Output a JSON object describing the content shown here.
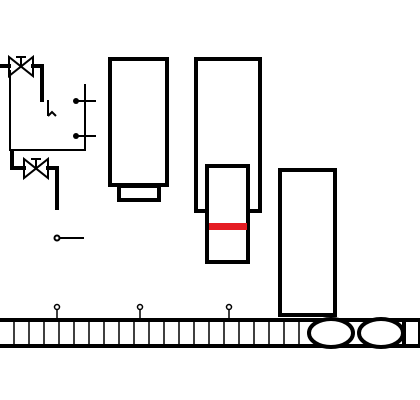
{
  "colors": {
    "background": "#ffffff",
    "stroke": "#000000",
    "highlight": "#e51c23"
  },
  "icons": {
    "valve_top": "butterfly-valve-icon",
    "valve_bottom": "butterfly-valve-icon",
    "contacts": "switch-contacts-icon",
    "sensor": "sensor-probe-icon"
  }
}
